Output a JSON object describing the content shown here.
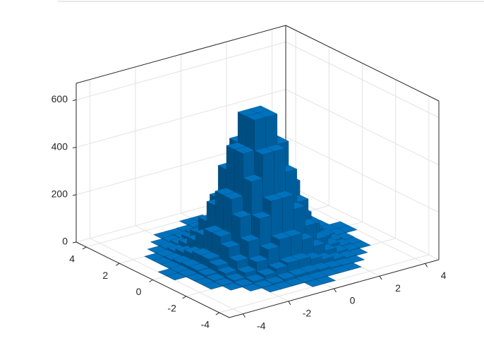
{
  "chart_data": {
    "type": "histogram2",
    "color": "#0072bd",
    "xbins": [
      -4,
      -3.5,
      -3,
      -2.5,
      -2,
      -1.5,
      -1,
      -0.5,
      0,
      0.5,
      1,
      1.5,
      2,
      2.5,
      3,
      3.5,
      4
    ],
    "ybins": [
      -4,
      -3.5,
      -3,
      -2.5,
      -2,
      -1.5,
      -1,
      -0.5,
      0,
      0.5,
      1,
      1.5,
      2,
      2.5,
      3,
      3.5,
      4
    ],
    "counts": [
      [
        0,
        0,
        0,
        0,
        0,
        0,
        0,
        1,
        1,
        0,
        0,
        0,
        0,
        0,
        0,
        0
      ],
      [
        0,
        0,
        0,
        0,
        1,
        1,
        2,
        3,
        3,
        2,
        1,
        1,
        0,
        0,
        0,
        0
      ],
      [
        0,
        0,
        0,
        1,
        3,
        6,
        11,
        14,
        14,
        11,
        6,
        3,
        1,
        0,
        0,
        0
      ],
      [
        0,
        0,
        1,
        4,
        11,
        23,
        37,
        48,
        48,
        37,
        23,
        11,
        4,
        1,
        0,
        0
      ],
      [
        0,
        1,
        3,
        11,
        29,
        61,
        101,
        130,
        130,
        101,
        61,
        29,
        11,
        3,
        1,
        0
      ],
      [
        0,
        1,
        6,
        23,
        61,
        130,
        214,
        275,
        275,
        214,
        130,
        61,
        23,
        6,
        1,
        0
      ],
      [
        0,
        2,
        11,
        37,
        101,
        214,
        353,
        454,
        454,
        353,
        214,
        101,
        37,
        11,
        2,
        0
      ],
      [
        1,
        3,
        14,
        48,
        130,
        275,
        454,
        582,
        582,
        454,
        275,
        130,
        48,
        14,
        3,
        1
      ],
      [
        1,
        3,
        14,
        48,
        130,
        275,
        454,
        582,
        582,
        454,
        275,
        130,
        48,
        14,
        3,
        1
      ],
      [
        0,
        2,
        11,
        37,
        101,
        214,
        353,
        454,
        454,
        353,
        214,
        101,
        37,
        11,
        2,
        0
      ],
      [
        0,
        1,
        6,
        23,
        61,
        130,
        214,
        275,
        275,
        214,
        130,
        61,
        23,
        6,
        1,
        0
      ],
      [
        0,
        1,
        3,
        11,
        29,
        61,
        101,
        130,
        130,
        101,
        61,
        29,
        11,
        3,
        1,
        0
      ],
      [
        0,
        0,
        1,
        4,
        11,
        23,
        37,
        48,
        48,
        37,
        23,
        11,
        4,
        1,
        0,
        0
      ],
      [
        0,
        0,
        0,
        1,
        3,
        6,
        11,
        14,
        14,
        11,
        6,
        3,
        1,
        0,
        0,
        0
      ],
      [
        0,
        0,
        0,
        0,
        1,
        1,
        2,
        3,
        3,
        2,
        1,
        1,
        0,
        0,
        0,
        0
      ],
      [
        0,
        0,
        0,
        0,
        0,
        0,
        0,
        1,
        1,
        0,
        0,
        0,
        0,
        0,
        0,
        0
      ]
    ],
    "xlim": [
      -4.6,
      4.6
    ],
    "ylim": [
      -4.6,
      4.6
    ],
    "zlim": [
      0,
      670
    ],
    "xticks": [
      -4,
      -2,
      0,
      2,
      4
    ],
    "yticks": [
      -4,
      -2,
      0,
      2,
      4
    ],
    "zticks": [
      0,
      200,
      400,
      600
    ],
    "grid": true
  }
}
